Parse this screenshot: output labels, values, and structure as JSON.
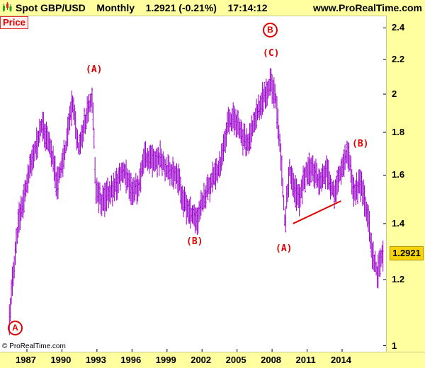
{
  "header": {
    "title": "Spot GBP/USD    Monthly    1.2921 (-0.21%)    17:14:12",
    "site": "www.ProRealTime.com"
  },
  "price_label": "Price",
  "last_price": "1.2921",
  "copyright": "© ProRealTime.com",
  "colors": {
    "price": "#9a00cc",
    "annotation": "#e00000",
    "header_bg": "#ffff9f",
    "last_price_bg": "#f5d40a"
  },
  "icons": {
    "header": "candlestick-chart-icon"
  },
  "wave_labels": [
    {
      "id": "A-circle",
      "text": "A"
    },
    {
      "id": "A-1992",
      "text": "(A)"
    },
    {
      "id": "B-2001",
      "text": "(B)"
    },
    {
      "id": "B-circle",
      "text": "B"
    },
    {
      "id": "C-2008",
      "text": "(C)"
    },
    {
      "id": "A-2009",
      "text": "(A)"
    },
    {
      "id": "B-2014",
      "text": "(B)"
    }
  ],
  "chart_data": {
    "type": "bar",
    "title": "Spot GBP/USD",
    "y_scale": "log",
    "ylim": [
      1.05,
      2.5
    ],
    "xlim": [
      1985.5,
      2017.5
    ],
    "y_ticks": [
      1,
      1.2,
      1.4,
      1.6,
      1.8,
      2,
      2.2,
      2.4
    ],
    "x_ticks": [
      "1987",
      "1990",
      "1993",
      "1996",
      "1999",
      "2002",
      "2005",
      "2008",
      "2011",
      "2014"
    ],
    "grid": false,
    "series": [
      {
        "name": "GBP/USD",
        "points": [
          [
            1985.5,
            1.08
          ],
          [
            1986.3,
            1.42
          ],
          [
            1987.0,
            1.55
          ],
          [
            1987.5,
            1.68
          ],
          [
            1988.3,
            1.84
          ],
          [
            1989.0,
            1.72
          ],
          [
            1989.6,
            1.56
          ],
          [
            1990.3,
            1.72
          ],
          [
            1990.9,
            1.95
          ],
          [
            1991.4,
            1.72
          ],
          [
            1992.0,
            1.86
          ],
          [
            1992.6,
            1.99
          ],
          [
            1992.9,
            1.52
          ],
          [
            1993.5,
            1.49
          ],
          [
            1994.5,
            1.55
          ],
          [
            1995.3,
            1.62
          ],
          [
            1996.0,
            1.54
          ],
          [
            1996.6,
            1.55
          ],
          [
            1997.0,
            1.68
          ],
          [
            1997.8,
            1.66
          ],
          [
            1998.5,
            1.68
          ],
          [
            1999.0,
            1.62
          ],
          [
            1999.8,
            1.61
          ],
          [
            2000.5,
            1.48
          ],
          [
            2001.0,
            1.44
          ],
          [
            2001.6,
            1.42
          ],
          [
            2002.3,
            1.52
          ],
          [
            2002.9,
            1.58
          ],
          [
            2003.6,
            1.65
          ],
          [
            2004.2,
            1.84
          ],
          [
            2004.8,
            1.88
          ],
          [
            2005.4,
            1.77
          ],
          [
            2006.0,
            1.74
          ],
          [
            2006.6,
            1.88
          ],
          [
            2007.3,
            2.0
          ],
          [
            2007.9,
            2.06
          ],
          [
            2008.3,
            1.98
          ],
          [
            2008.7,
            1.72
          ],
          [
            2009.1,
            1.4
          ],
          [
            2009.5,
            1.62
          ],
          [
            2010.3,
            1.48
          ],
          [
            2010.9,
            1.62
          ],
          [
            2011.4,
            1.64
          ],
          [
            2012.1,
            1.56
          ],
          [
            2012.7,
            1.62
          ],
          [
            2013.3,
            1.52
          ],
          [
            2014.0,
            1.64
          ],
          [
            2014.5,
            1.71
          ],
          [
            2015.0,
            1.53
          ],
          [
            2015.6,
            1.56
          ],
          [
            2016.2,
            1.44
          ],
          [
            2016.5,
            1.31
          ],
          [
            2017.0,
            1.22
          ],
          [
            2017.5,
            1.29
          ]
        ]
      }
    ],
    "annotations": [
      {
        "type": "line",
        "x": [
          2009.8,
          2013.9
        ],
        "y": [
          1.4,
          1.49
        ],
        "color": "#e00000"
      }
    ]
  }
}
